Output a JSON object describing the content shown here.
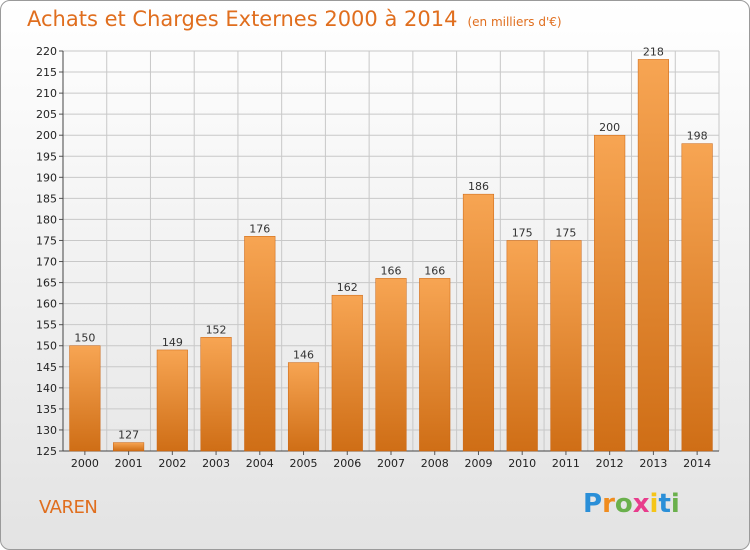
{
  "header": {
    "title": "Achats et Charges Externes 2000 à 2014",
    "subtitle": "(en milliers d'€)"
  },
  "footer": {
    "place": "VAREN",
    "logo": {
      "letters": [
        "P",
        "r",
        "o",
        "x",
        "i",
        "t",
        "i"
      ],
      "colors": [
        "#2a8fd8",
        "#f08c1e",
        "#6ab04c",
        "#e83c8c",
        "#f5c518",
        "#2a8fd8",
        "#6ab04c"
      ]
    }
  },
  "chart_data": {
    "type": "bar",
    "categories": [
      "2000",
      "2001",
      "2002",
      "2003",
      "2004",
      "2005",
      "2006",
      "2007",
      "2008",
      "2009",
      "2010",
      "2011",
      "2012",
      "2013",
      "2014"
    ],
    "values": [
      150,
      127,
      149,
      152,
      176,
      146,
      162,
      166,
      166,
      186,
      175,
      175,
      200,
      218,
      198
    ],
    "value_labels": [
      "150",
      "127",
      "149",
      "152",
      "176",
      "146",
      "162",
      "166",
      "166",
      "186",
      "175",
      "175",
      "200",
      "218",
      "198"
    ],
    "title": "Achats et Charges Externes 2000 à 2014",
    "xlabel": "",
    "ylabel": "",
    "ylim": [
      125,
      220
    ],
    "yticks": [
      125,
      130,
      135,
      140,
      145,
      150,
      155,
      160,
      165,
      170,
      175,
      180,
      185,
      190,
      195,
      200,
      205,
      210,
      215,
      220
    ],
    "grid": true,
    "bar_colors": {
      "light": "#f7a553",
      "dark": "#cf6e16"
    },
    "grid_color": "#c8c8c8"
  }
}
